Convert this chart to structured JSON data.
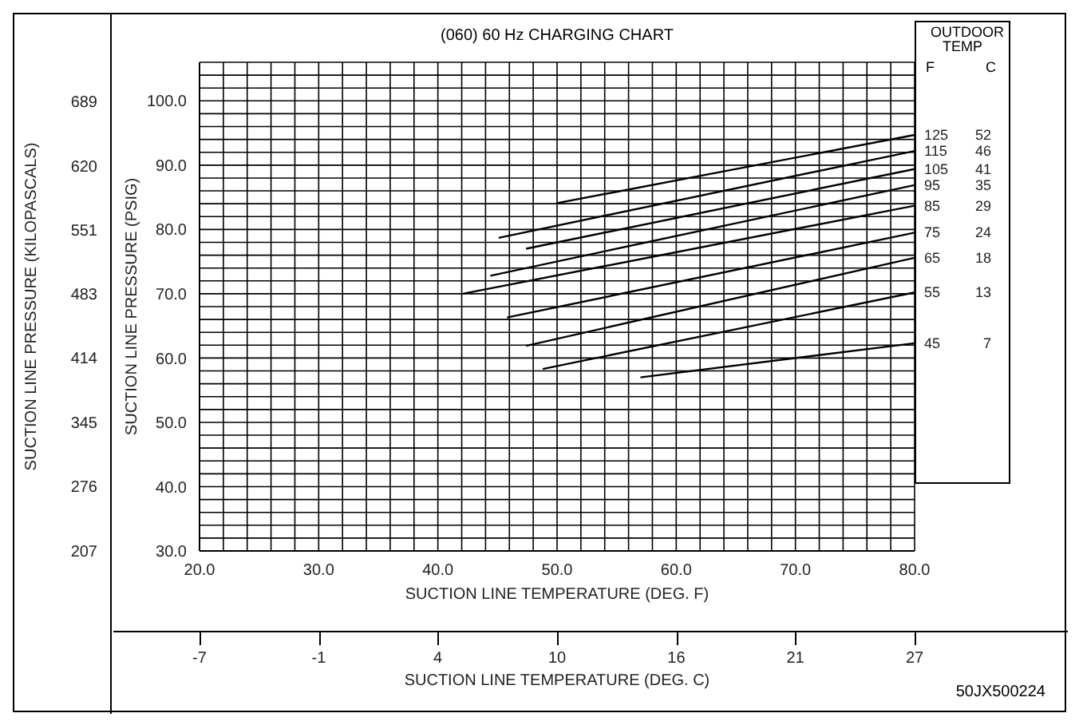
{
  "chart_data": {
    "type": "line",
    "title": "(060) 60 Hz CHARGING CHART",
    "xlabel": "SUCTION LINE TEMPERATURE (DEG. F)",
    "x2label": "SUCTION LINE TEMPERATURE (DEG. C)",
    "ylabel": "SUCTION LINE PRESSURE (PSIG)",
    "y2label": "SUCTION LINE PRESSURE (KILOPASCALS)",
    "legend_title": "OUTDOOR TEMP",
    "legend": "right",
    "grid": true,
    "marker": "none",
    "line_style": "solid",
    "xlim": [
      20,
      80
    ],
    "xticks": [
      {
        "value": 20,
        "label": "20.0"
      },
      {
        "value": 22,
        "label": null
      },
      {
        "value": 24,
        "label": null
      },
      {
        "value": 26,
        "label": null
      },
      {
        "value": 28,
        "label": null
      },
      {
        "value": 30,
        "label": "30.0"
      },
      {
        "value": 32,
        "label": null
      },
      {
        "value": 34,
        "label": null
      },
      {
        "value": 36,
        "label": null
      },
      {
        "value": 38,
        "label": null
      },
      {
        "value": 40,
        "label": "40.0"
      },
      {
        "value": 42,
        "label": null
      },
      {
        "value": 44,
        "label": null
      },
      {
        "value": 46,
        "label": null
      },
      {
        "value": 48,
        "label": null
      },
      {
        "value": 50,
        "label": "50.0"
      },
      {
        "value": 52,
        "label": null
      },
      {
        "value": 54,
        "label": null
      },
      {
        "value": 56,
        "label": null
      },
      {
        "value": 58,
        "label": null
      },
      {
        "value": 60,
        "label": "60.0"
      },
      {
        "value": 62,
        "label": null
      },
      {
        "value": 64,
        "label": null
      },
      {
        "value": 66,
        "label": null
      },
      {
        "value": 68,
        "label": null
      },
      {
        "value": 70,
        "label": "70.0"
      },
      {
        "value": 72,
        "label": null
      },
      {
        "value": 74,
        "label": null
      },
      {
        "value": 76,
        "label": null
      },
      {
        "value": 78,
        "label": null
      },
      {
        "value": 80,
        "label": "80.0"
      }
    ],
    "x2lim": [
      -6.67,
      26.67
    ],
    "x2ticks": [
      {
        "value": -6.67,
        "label": "-7"
      },
      {
        "value": -1.11,
        "label": "-1"
      },
      {
        "value": 4.44,
        "label": "4"
      },
      {
        "value": 10,
        "label": "10"
      },
      {
        "value": 15.56,
        "label": "16"
      },
      {
        "value": 21.11,
        "label": "21"
      },
      {
        "value": 26.67,
        "label": "27"
      }
    ],
    "ylim": [
      30,
      106
    ],
    "yticks": [
      {
        "value": 30,
        "label": "30.0"
      },
      {
        "value": 32,
        "label": null
      },
      {
        "value": 34,
        "label": null
      },
      {
        "value": 36,
        "label": null
      },
      {
        "value": 38,
        "label": null
      },
      {
        "value": 40,
        "label": "40.0"
      },
      {
        "value": 42,
        "label": null
      },
      {
        "value": 44,
        "label": null
      },
      {
        "value": 46,
        "label": null
      },
      {
        "value": 48,
        "label": null
      },
      {
        "value": 50,
        "label": "50.0"
      },
      {
        "value": 52,
        "label": null
      },
      {
        "value": 54,
        "label": null
      },
      {
        "value": 56,
        "label": null
      },
      {
        "value": 58,
        "label": null
      },
      {
        "value": 60,
        "label": "60.0"
      },
      {
        "value": 62,
        "label": null
      },
      {
        "value": 64,
        "label": null
      },
      {
        "value": 66,
        "label": null
      },
      {
        "value": 68,
        "label": null
      },
      {
        "value": 70,
        "label": "70.0"
      },
      {
        "value": 72,
        "label": null
      },
      {
        "value": 74,
        "label": null
      },
      {
        "value": 76,
        "label": null
      },
      {
        "value": 78,
        "label": null
      },
      {
        "value": 80,
        "label": "80.0"
      },
      {
        "value": 82,
        "label": null
      },
      {
        "value": 84,
        "label": null
      },
      {
        "value": 86,
        "label": null
      },
      {
        "value": 88,
        "label": null
      },
      {
        "value": 90,
        "label": "90.0"
      },
      {
        "value": 92,
        "label": null
      },
      {
        "value": 94,
        "label": null
      },
      {
        "value": 96,
        "label": null
      },
      {
        "value": 98,
        "label": null
      },
      {
        "value": 100,
        "label": "100.0"
      },
      {
        "value": 102,
        "label": null
      },
      {
        "value": 104,
        "label": null
      },
      {
        "value": 106,
        "label": null
      }
    ],
    "y2lim": [
      206.8,
      730.9
    ],
    "y2ticks": [
      207,
      276,
      345,
      414,
      483,
      551,
      620,
      689
    ],
    "series": [
      {
        "name": "125",
        "color": "#000000",
        "x": [
          50.0,
          80.0
        ],
        "values": [
          84.1,
          94.7
        ]
      },
      {
        "name": "115",
        "color": "#000000",
        "x": [
          45.1,
          80.0
        ],
        "values": [
          78.7,
          92.2
        ]
      },
      {
        "name": "105",
        "color": "#000000",
        "x": [
          47.4,
          80.0
        ],
        "values": [
          77.0,
          89.4
        ]
      },
      {
        "name": "95",
        "color": "#000000",
        "x": [
          44.4,
          80.0
        ],
        "values": [
          72.8,
          86.9
        ]
      },
      {
        "name": "85",
        "color": "#000000",
        "x": [
          42.1,
          80.0
        ],
        "values": [
          70.0,
          83.7
        ]
      },
      {
        "name": "75",
        "color": "#000000",
        "x": [
          45.8,
          80.0
        ],
        "values": [
          66.3,
          79.5
        ]
      },
      {
        "name": "65",
        "color": "#000000",
        "x": [
          47.4,
          80.0
        ],
        "values": [
          61.9,
          75.6
        ]
      },
      {
        "name": "55",
        "color": "#000000",
        "x": [
          48.8,
          80.0
        ],
        "values": [
          58.3,
          70.2
        ]
      },
      {
        "name": "45",
        "color": "#000000",
        "x": [
          57.0,
          80.0
        ],
        "values": [
          57.0,
          62.3
        ]
      }
    ],
    "annotations": [
      "F",
      "C",
      "52",
      "46",
      "41",
      "35",
      "29",
      "24",
      "18",
      "13",
      "7",
      "50JX500224"
    ]
  }
}
